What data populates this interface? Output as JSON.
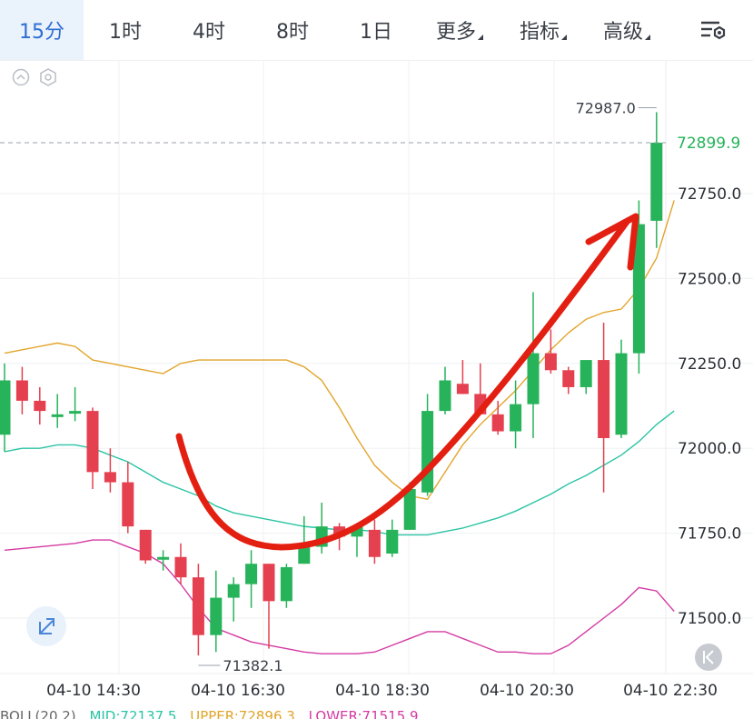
{
  "tabs": {
    "items": [
      {
        "label": "15分",
        "active": true,
        "dropdown": false
      },
      {
        "label": "1时",
        "active": false,
        "dropdown": false
      },
      {
        "label": "4时",
        "active": false,
        "dropdown": false
      },
      {
        "label": "8时",
        "active": false,
        "dropdown": false
      },
      {
        "label": "1日",
        "active": false,
        "dropdown": false
      },
      {
        "label": "更多",
        "active": false,
        "dropdown": true
      },
      {
        "label": "指标",
        "active": false,
        "dropdown": true
      },
      {
        "label": "高级",
        "active": false,
        "dropdown": true
      }
    ],
    "settings_icon": "chart-settings-icon"
  },
  "toolbar_icons": [
    "collapse-up-icon",
    "hexagon-settings-icon"
  ],
  "expand_icon": "expand-arrows-icon",
  "back_icon": "back-to-latest-icon",
  "colors": {
    "up": "#26b35a",
    "down": "#e5404f",
    "mid": "#2bc4a4",
    "upper": "#e2a52c",
    "lower": "#d43aa3",
    "arrow": "#e31f12",
    "last_price": "#26b35a"
  },
  "last_price_label": "72899.9",
  "high_label": "72987.0",
  "low_label": "71382.1",
  "legend": {
    "name": "BOLL(20,2)",
    "mid": "MID:72137.5",
    "upper": "UPPER:72896.3",
    "lower": "LOWER:71515.9"
  },
  "chart_data": {
    "type": "candlestick",
    "ylim": [
      71340,
      73100
    ],
    "y_ticks": [
      "72750.0",
      "72500.0",
      "72250.0",
      "72000.0",
      "71750.0",
      "71500.0"
    ],
    "x_ticks": [
      "04-10 14:30",
      "04-10 16:30",
      "04-10 18:30",
      "04-10 20:30",
      "04-10 22:30"
    ],
    "candles": [
      {
        "o": 72040,
        "h": 72250,
        "l": 71990,
        "c": 72200
      },
      {
        "o": 72200,
        "h": 72240,
        "l": 72100,
        "c": 72140
      },
      {
        "o": 72140,
        "h": 72180,
        "l": 72070,
        "c": 72110
      },
      {
        "o": 72100,
        "h": 72160,
        "l": 72060,
        "c": 72100
      },
      {
        "o": 72110,
        "h": 72180,
        "l": 72080,
        "c": 72110
      },
      {
        "o": 72110,
        "h": 72120,
        "l": 71880,
        "c": 71930
      },
      {
        "o": 71930,
        "h": 72000,
        "l": 71870,
        "c": 71900
      },
      {
        "o": 71900,
        "h": 71960,
        "l": 71750,
        "c": 71770
      },
      {
        "o": 71760,
        "h": 71760,
        "l": 71660,
        "c": 71670
      },
      {
        "o": 71680,
        "h": 71700,
        "l": 71640,
        "c": 71680
      },
      {
        "o": 71680,
        "h": 71720,
        "l": 71600,
        "c": 71620
      },
      {
        "o": 71620,
        "h": 71660,
        "l": 71390,
        "c": 71450
      },
      {
        "o": 71450,
        "h": 71640,
        "l": 71400,
        "c": 71560
      },
      {
        "o": 71560,
        "h": 71620,
        "l": 71490,
        "c": 71600
      },
      {
        "o": 71600,
        "h": 71700,
        "l": 71530,
        "c": 71660
      },
      {
        "o": 71660,
        "h": 71660,
        "l": 71410,
        "c": 71550
      },
      {
        "o": 71550,
        "h": 71660,
        "l": 71530,
        "c": 71650
      },
      {
        "o": 71660,
        "h": 71800,
        "l": 71660,
        "c": 71720
      },
      {
        "o": 71710,
        "h": 71840,
        "l": 71690,
        "c": 71770
      },
      {
        "o": 71770,
        "h": 71780,
        "l": 71700,
        "c": 71740
      },
      {
        "o": 71740,
        "h": 71780,
        "l": 71680,
        "c": 71770
      },
      {
        "o": 71760,
        "h": 71790,
        "l": 71660,
        "c": 71680
      },
      {
        "o": 71690,
        "h": 71790,
        "l": 71680,
        "c": 71760
      },
      {
        "o": 71760,
        "h": 71900,
        "l": 71760,
        "c": 71880
      },
      {
        "o": 71870,
        "h": 72160,
        "l": 71860,
        "c": 72110
      },
      {
        "o": 72110,
        "h": 72240,
        "l": 72100,
        "c": 72200
      },
      {
        "o": 72190,
        "h": 72260,
        "l": 72160,
        "c": 72160
      },
      {
        "o": 72160,
        "h": 72250,
        "l": 72100,
        "c": 72100
      },
      {
        "o": 72100,
        "h": 72140,
        "l": 72040,
        "c": 72050
      },
      {
        "o": 72050,
        "h": 72200,
        "l": 72000,
        "c": 72130
      },
      {
        "o": 72130,
        "h": 72460,
        "l": 72030,
        "c": 72280
      },
      {
        "o": 72280,
        "h": 72350,
        "l": 72220,
        "c": 72230
      },
      {
        "o": 72230,
        "h": 72240,
        "l": 72160,
        "c": 72180
      },
      {
        "o": 72180,
        "h": 72260,
        "l": 72160,
        "c": 72260
      },
      {
        "o": 72260,
        "h": 72370,
        "l": 71870,
        "c": 72030
      },
      {
        "o": 72040,
        "h": 72320,
        "l": 72030,
        "c": 72280
      },
      {
        "o": 72280,
        "h": 72730,
        "l": 72220,
        "c": 72660
      },
      {
        "o": 72670,
        "h": 72990,
        "l": 72590,
        "c": 72900
      }
    ],
    "series": [
      {
        "name": "MID",
        "values": [
          71990,
          72000,
          72000,
          72010,
          72010,
          72000,
          71980,
          71960,
          71930,
          71900,
          71880,
          71860,
          71830,
          71810,
          71800,
          71790,
          71780,
          71770,
          71765,
          71760,
          71760,
          71755,
          71745,
          71745,
          71745,
          71755,
          71765,
          71780,
          71795,
          71815,
          71840,
          71865,
          71895,
          71920,
          71950,
          71980,
          72020,
          72070,
          72110
        ]
      },
      {
        "name": "UPPER",
        "values": [
          72280,
          72290,
          72300,
          72310,
          72300,
          72260,
          72250,
          72240,
          72230,
          72220,
          72250,
          72260,
          72260,
          72260,
          72260,
          72260,
          72260,
          72240,
          72200,
          72120,
          72030,
          71950,
          71900,
          71860,
          71850,
          71930,
          72010,
          72070,
          72120,
          72170,
          72230,
          72290,
          72340,
          72380,
          72400,
          72410,
          72470,
          72560,
          72730
        ]
      },
      {
        "name": "LOWER",
        "values": [
          71700,
          71705,
          71710,
          71715,
          71720,
          71730,
          71730,
          71710,
          71690,
          71660,
          71600,
          71530,
          71470,
          71450,
          71430,
          71420,
          71410,
          71400,
          71395,
          71395,
          71395,
          71400,
          71420,
          71440,
          71460,
          71460,
          71440,
          71420,
          71400,
          71400,
          71395,
          71395,
          71420,
          71460,
          71500,
          71540,
          71590,
          71580,
          71520
        ]
      }
    ]
  }
}
